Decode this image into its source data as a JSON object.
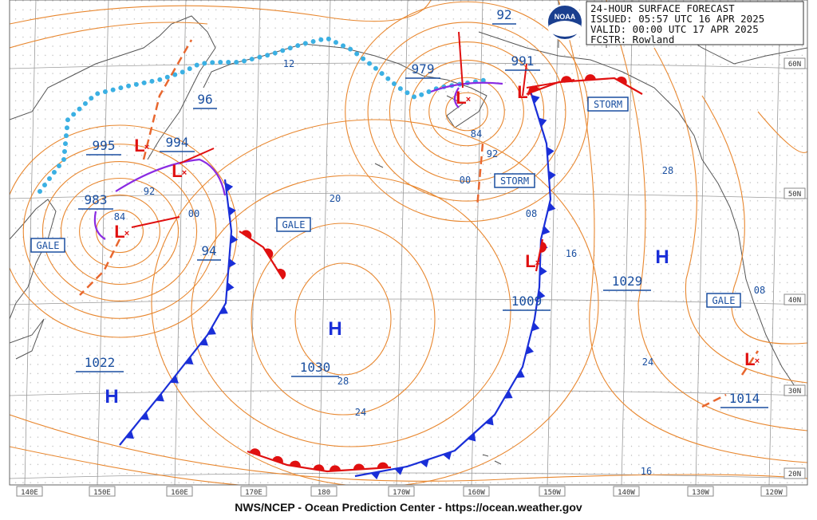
{
  "header": {
    "title": "24-HOUR SURFACE FORECAST",
    "issued": "ISSUED: 05:57 UTC 16 APR 2025",
    "valid": "VALID:  00:00 UTC 17 APR 2025",
    "forecaster": "FCSTR:  Rowland"
  },
  "logo": "NOAA",
  "footer": "NWS/NCEP - Ocean Prediction Center - https://ocean.weather.gov",
  "longitude_labels": [
    "140E",
    "150E",
    "160E",
    "170E",
    "180",
    "170W",
    "160W",
    "150W",
    "140W",
    "130W",
    "120W"
  ],
  "latitude_labels": [
    "60N",
    "50N",
    "40N",
    "30N",
    "20N"
  ],
  "pressure_centers": [
    "995",
    "994",
    "983",
    "96",
    "979",
    "92",
    "991",
    "94",
    "1029",
    "1009",
    "1022",
    "1030",
    "1014"
  ],
  "isobar_labels": [
    "12",
    "92",
    "84",
    "00",
    "20",
    "84",
    "92",
    "00",
    "08",
    "16",
    "28",
    "24",
    "28",
    "24",
    "16",
    "08"
  ],
  "warnings": [
    "GALE",
    "GALE",
    "STORM",
    "STORM",
    "GALE"
  ],
  "highs": [
    "H",
    "H",
    "H"
  ],
  "lows": [
    "L",
    "L",
    "L",
    "L",
    "L",
    "L",
    "L"
  ]
}
